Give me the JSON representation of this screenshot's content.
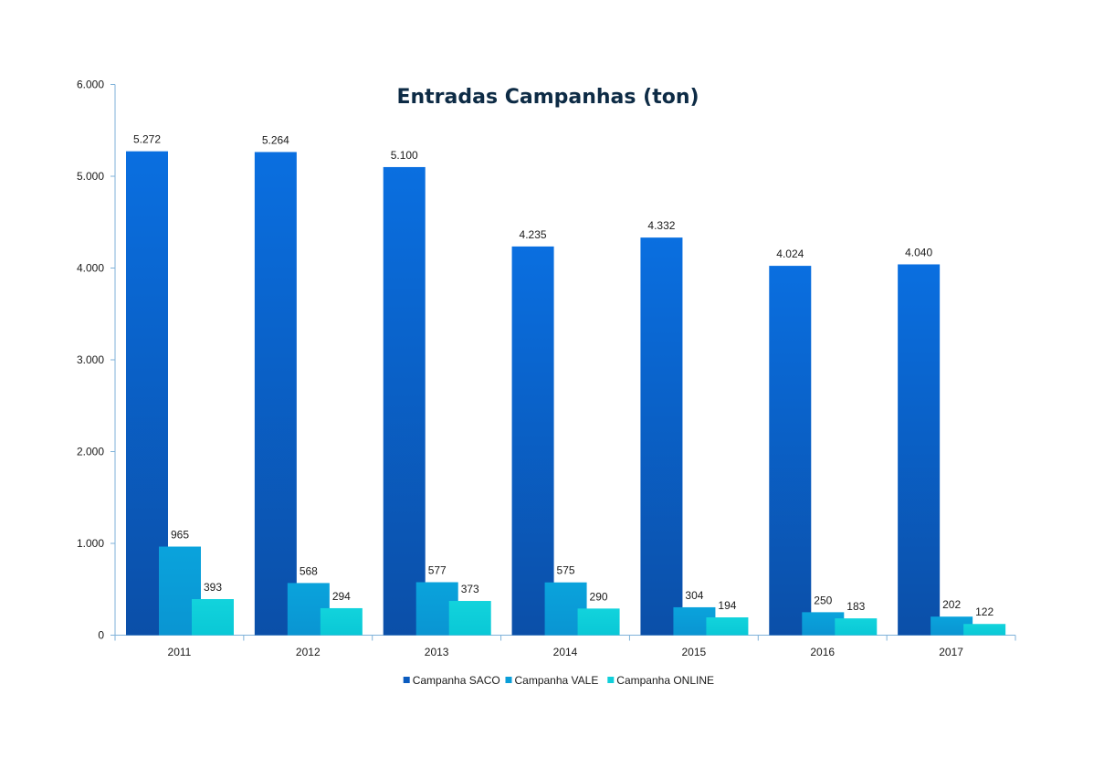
{
  "chart_data": {
    "type": "bar",
    "title": "Entradas Campanhas (ton)",
    "xlabel": "",
    "ylabel": "",
    "categories": [
      "2011",
      "2012",
      "2013",
      "2014",
      "2015",
      "2016",
      "2017"
    ],
    "series": [
      {
        "name": "Campanha SACO",
        "values": [
          5272,
          5264,
          5100,
          4235,
          4332,
          4024,
          4040
        ],
        "labels": [
          "5.272",
          "5.264",
          "5.100",
          "4.235",
          "4.332",
          "4.024",
          "4.040"
        ],
        "color_top": "#0a6fe0",
        "color_bottom": "#0b4fa8",
        "legend_color": "#0a5bbf"
      },
      {
        "name": "Campanha VALE",
        "values": [
          965,
          568,
          577,
          575,
          304,
          250,
          202
        ],
        "labels": [
          "965",
          "568",
          "577",
          "575",
          "304",
          "250",
          "202"
        ],
        "color_top": "#0aa3dc",
        "color_bottom": "#0a95d2",
        "legend_color": "#0a9ed8"
      },
      {
        "name": "Campanha ONLINE",
        "values": [
          393,
          294,
          373,
          290,
          194,
          183,
          122
        ],
        "labels": [
          "393",
          "294",
          "373",
          "290",
          "194",
          "183",
          "122"
        ],
        "color_top": "#12d3dc",
        "color_bottom": "#0ac8d6",
        "legend_color": "#10cfda"
      }
    ],
    "ylim": [
      0,
      6000
    ],
    "yticks": [
      0,
      1000,
      2000,
      3000,
      4000,
      5000,
      6000
    ],
    "ytick_labels": [
      "0",
      "1.000",
      "2.000",
      "3.000",
      "4.000",
      "5.000",
      "6.000"
    ],
    "grid": false,
    "legend_position": "bottom",
    "axis_color": "#7fb2d9"
  }
}
